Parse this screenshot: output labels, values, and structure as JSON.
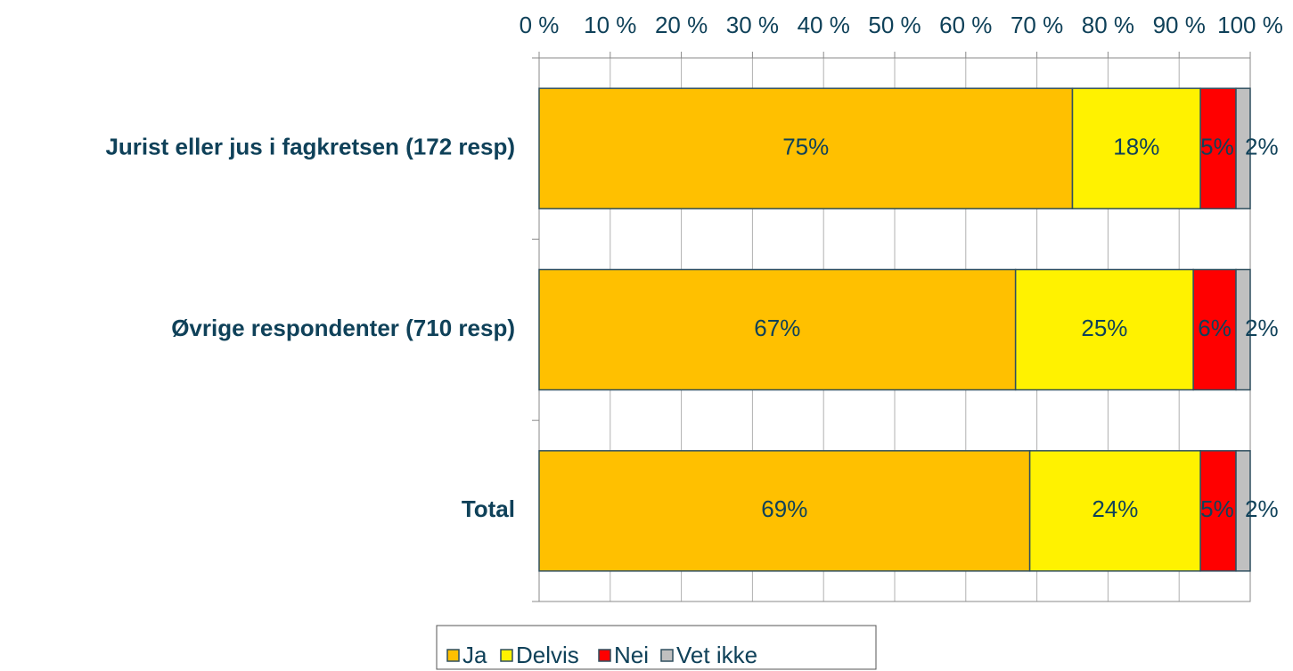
{
  "chart_data": {
    "type": "stacked-bar-horizontal",
    "categories": [
      "Jurist eller jus i fagkretsen (172 resp)",
      "Øvrige respondenter (710 resp)",
      "Total"
    ],
    "series": [
      {
        "name": "Ja",
        "color": "#ffc000",
        "values": [
          75,
          67,
          69
        ],
        "value_labels": [
          "75%",
          "67%",
          "69%"
        ]
      },
      {
        "name": "Delvis",
        "color": "#fff200",
        "values": [
          18,
          25,
          24
        ],
        "value_labels": [
          "18%",
          "25%",
          "24%"
        ]
      },
      {
        "name": "Nei",
        "color": "#ff0000",
        "values": [
          5,
          6,
          5
        ],
        "value_labels": [
          "5%",
          "6%",
          "5%"
        ]
      },
      {
        "name": "Vet ikke",
        "color": "#c0c0c0",
        "values": [
          2,
          2,
          2
        ],
        "value_labels": [
          "2%",
          "2%",
          "2%"
        ]
      }
    ],
    "xlim": [
      0,
      100
    ],
    "xticks": [
      {
        "value": 0,
        "label": "0 %"
      },
      {
        "value": 10,
        "label": "10 %"
      },
      {
        "value": 20,
        "label": "20 %"
      },
      {
        "value": 30,
        "label": "30 %"
      },
      {
        "value": 40,
        "label": "40 %"
      },
      {
        "value": 50,
        "label": "50 %"
      },
      {
        "value": 60,
        "label": "60 %"
      },
      {
        "value": 70,
        "label": "70 %"
      },
      {
        "value": 80,
        "label": "80 %"
      },
      {
        "value": 90,
        "label": "90 %"
      },
      {
        "value": 100,
        "label": "100 %"
      }
    ],
    "grid": true,
    "legend": "bottom"
  }
}
